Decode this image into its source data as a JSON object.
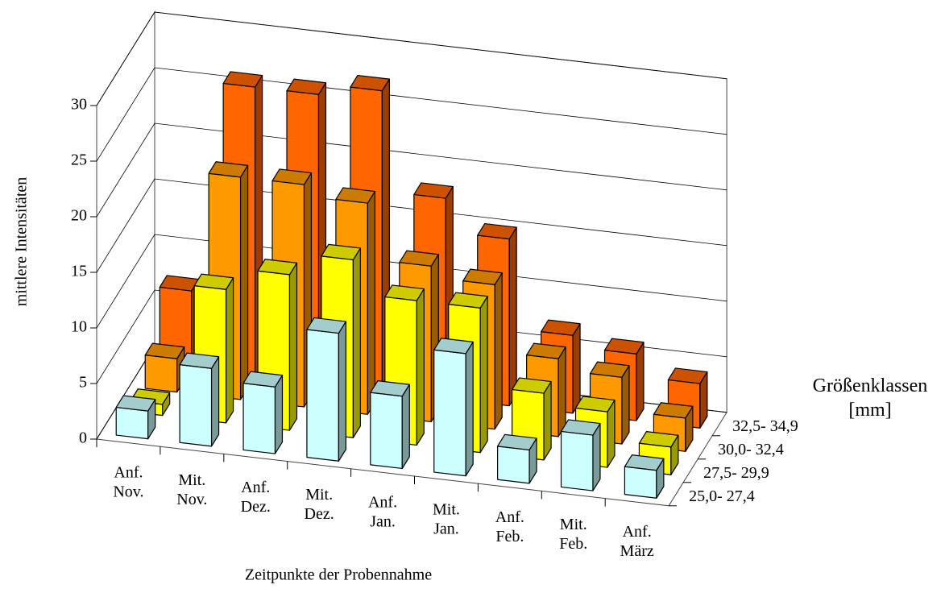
{
  "chart_data": {
    "type": "bar3d",
    "y_label": "mittlere Intensitäten",
    "x_label": "Zeitpunkte der Probennahme",
    "z_label": "Größenklassen [mm]",
    "categories": [
      "Anf. Nov.",
      "Mit. Nov.",
      "Anf. Dez.",
      "Mit. Dez.",
      "Anf. Jan.",
      "Mit. Jan.",
      "Anf. Feb.",
      "Mit. Feb.",
      "Anf. März"
    ],
    "series": [
      {
        "name": "32,5- 34,9",
        "color": "#ff6600",
        "values": [
          7,
          26,
          26,
          27,
          18,
          15,
          7,
          6,
          4
        ]
      },
      {
        "name": "30,0- 32,4",
        "color": "#ff9900",
        "values": [
          3,
          20,
          20,
          19,
          14,
          13,
          7,
          6,
          3
        ]
      },
      {
        "name": "27,5- 29,9",
        "color": "#ffff00",
        "values": [
          1,
          12,
          14,
          16,
          13,
          13,
          6,
          5,
          2.5
        ]
      },
      {
        "name": "25,0- 27,4",
        "color": "#ccffff",
        "values": [
          2.5,
          7,
          6,
          11.5,
          6.5,
          11,
          3,
          5,
          2.5
        ]
      }
    ],
    "ylim": [
      0,
      30
    ],
    "yticks": [
      0,
      5,
      10,
      15,
      20,
      25,
      30
    ],
    "grid": true
  }
}
